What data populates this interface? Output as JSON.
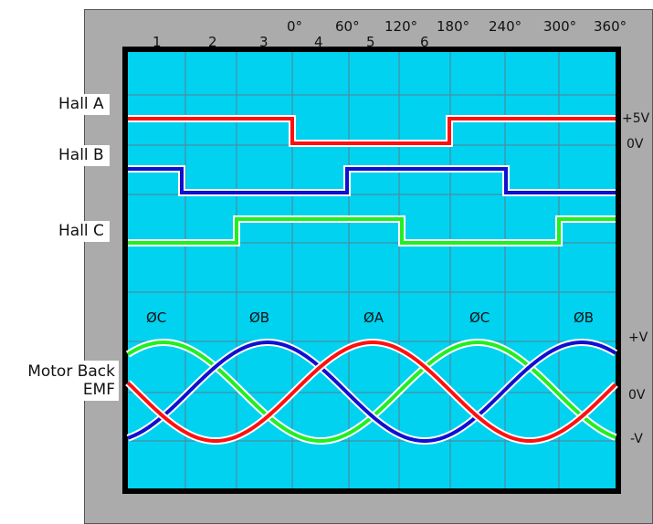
{
  "hall_labels": {
    "a": "Hall A",
    "b": "Hall B",
    "c": "Hall C"
  },
  "emf_label": {
    "line1": "Motor Back",
    "line2": "EMF"
  },
  "step_numbers": [
    "1",
    "2",
    "3",
    "4",
    "5",
    "6"
  ],
  "degree_ticks": [
    "0°",
    "60°",
    "120°",
    "180°",
    "240°",
    "300°",
    "360°"
  ],
  "voltage_labels": {
    "hall_high": "+5V",
    "hall_low": "0V",
    "emf_pos": "+V",
    "emf_zero": "0V",
    "emf_neg": "-V"
  },
  "phase_labels": [
    "ØC",
    "ØB",
    "ØA",
    "ØC",
    "ØB"
  ],
  "colors": {
    "screen": "#00d2f0",
    "grid": "#5a7f90",
    "frame": "#000000",
    "panel": "#ababab",
    "red": "#ff1010",
    "blue": "#1010d0",
    "green": "#22ee22",
    "outline": "#ffffff"
  }
}
